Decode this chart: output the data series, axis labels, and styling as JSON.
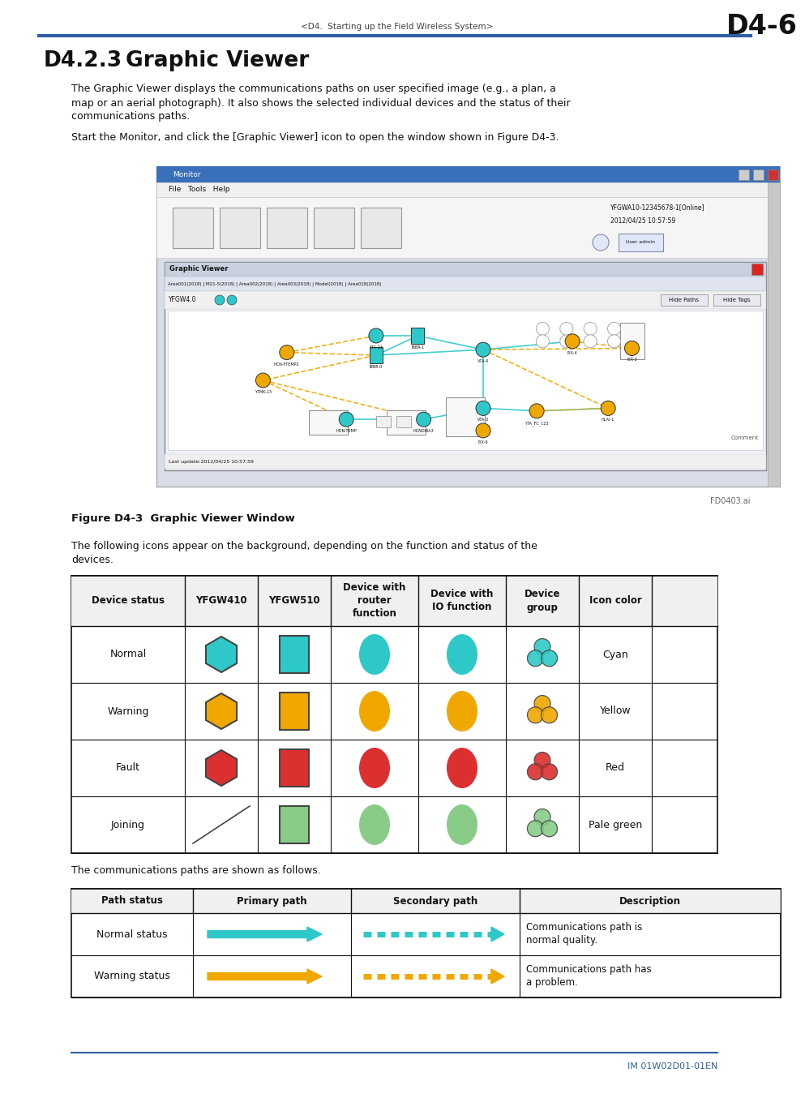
{
  "header_text": "<D4.  Starting up the Field Wireless System>",
  "header_page": "D4-6",
  "header_line_color": "#2e5fa3",
  "section_number": "D4.2.3",
  "section_title": "Graphic Viewer",
  "body_text1_lines": [
    "The Graphic Viewer displays the communications paths on user specified image (e.g., a plan, a",
    "map or an aerial photograph). It also shows the selected individual devices and the status of their",
    "communications paths."
  ],
  "body_text2": "Start the Monitor, and click the [Graphic Viewer] icon to open the window shown in Figure D4-3.",
  "figure_caption": "Figure D4-3  Graphic Viewer Window",
  "figure_note": "FD0403.ai",
  "body_text3_lines": [
    "The following icons appear on the background, depending on the function and status of the",
    "devices."
  ],
  "table1_headers": [
    "Device status",
    "YFGW410",
    "YFGW510",
    "Device with\nrouter\nfunction",
    "Device with\nIO function",
    "Device\ngroup",
    "Icon color"
  ],
  "table1_rows": [
    "Normal",
    "Warning",
    "Fault",
    "Joining"
  ],
  "table1_colors": {
    "Normal": {
      "hex": "#2ec8c8",
      "name": "Cyan"
    },
    "Warning": {
      "hex": "#f0a800",
      "name": "Yellow"
    },
    "Fault": {
      "hex": "#dc3030",
      "name": "Red"
    },
    "Joining": {
      "hex": "#88cc88",
      "name": "Pale green"
    }
  },
  "body_text4": "The communications paths are shown as follows.",
  "table2_headers": [
    "Path status",
    "Primary path",
    "Secondary path",
    "Description"
  ],
  "table2_rows": [
    {
      "status": "Normal status",
      "primary_color": "#2ec8c8",
      "secondary_color": "#2ec8c8",
      "description": "Communications path is\nnormal quality."
    },
    {
      "status": "Warning status",
      "primary_color": "#f0a800",
      "secondary_color": "#f0a800",
      "description": "Communications path has\na problem."
    }
  ],
  "footer_line_color": "#2e5fa3",
  "footer_text": "IM 01W02D01-01EN",
  "bg_color": "#ffffff"
}
